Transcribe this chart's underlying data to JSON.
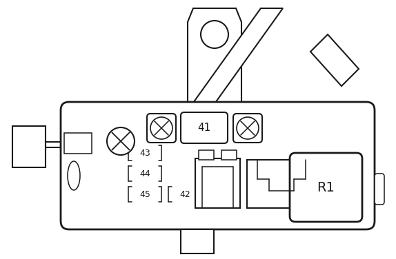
{
  "bg_color": "#ffffff",
  "line_color": "#1a1a1a",
  "lw_main": 2.0,
  "lw_mid": 1.5,
  "lw_thin": 1.1
}
